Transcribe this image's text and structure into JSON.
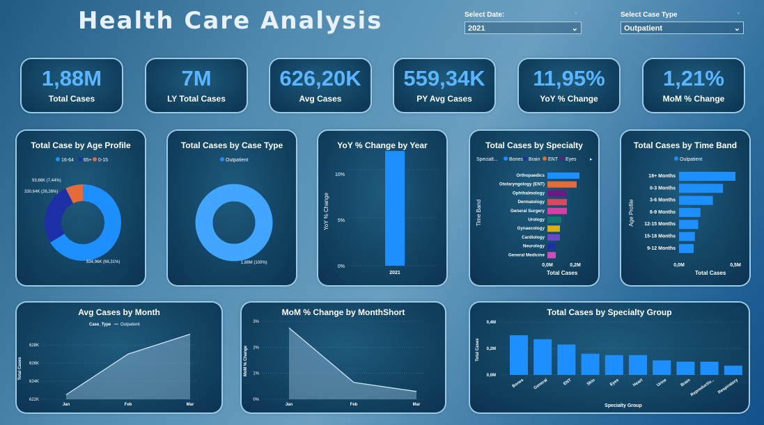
{
  "header": {
    "title": "Health Care Analysis"
  },
  "filters": {
    "date": {
      "label": "Select Date:",
      "value": "2021"
    },
    "case_type": {
      "label": "Select Case Type",
      "value": "Outpatient"
    }
  },
  "kpis": [
    {
      "value": "1,88M",
      "label": "Total Cases"
    },
    {
      "value": "7M",
      "label": "LY Total Cases"
    },
    {
      "value": "626,20K",
      "label": "Avg Cases"
    },
    {
      "value": "559,34K",
      "label": "PY Avg Cases"
    },
    {
      "value": "11,95%",
      "label": "YoY % Change"
    },
    {
      "value": "1,21%",
      "label": "MoM % Change"
    }
  ],
  "colors": {
    "primary": "#1e8fff",
    "age_16_64": "#1e8fff",
    "age_65": "#1c2fa6",
    "age_0_15": "#e46c3a",
    "bones": "#1e8fff",
    "brain": "#1c2fa6",
    "ent": "#e46c3a",
    "eyes": "#6a1b80"
  },
  "chart_data": [
    {
      "id": "age",
      "type": "pie",
      "title": "Total Case by Age Profile",
      "legend_position": "top",
      "categories": [
        "16-64",
        "65+",
        "0-15"
      ],
      "values": [
        834.96,
        330.64,
        93.66
      ],
      "data_labels": [
        "834,96K (66,31%)",
        "330,64K (26,26%)",
        "93,66K (7,44%)"
      ]
    },
    {
      "id": "casetype",
      "type": "pie",
      "title": "Total Cases by Case Type",
      "legend_position": "top",
      "categories": [
        "Outpatient"
      ],
      "values": [
        1.88
      ],
      "data_labels": [
        "1,88M (100%)"
      ]
    },
    {
      "id": "yoy",
      "type": "bar",
      "title": "YoY % Change by Year",
      "categories": [
        "2021"
      ],
      "values": [
        11.95
      ],
      "ylabel": "YoY % Change",
      "ylim": [
        0,
        12
      ],
      "yticks": [
        "0%",
        "5%",
        "10%"
      ]
    },
    {
      "id": "specialty",
      "type": "bar",
      "title": "Total Cases by Specialty",
      "orientation": "horizontal",
      "legend_title": "Specialt...",
      "legend": [
        "Bones",
        "Brain",
        "ENT",
        "Eyes"
      ],
      "categories": [
        "Orthopaedics",
        "Otolaryngology (ENT)",
        "Ophthalmology",
        "Dermatology",
        "General Surgery",
        "Urology",
        "Gynaecology",
        "Cardiology",
        "Neurology",
        "General Medicine"
      ],
      "values": [
        0.23,
        0.21,
        0.14,
        0.14,
        0.14,
        0.1,
        0.09,
        0.09,
        0.06,
        0.06
      ],
      "bar_colors": [
        "#1e8fff",
        "#e46c3a",
        "#6a1b80",
        "#d9485e",
        "#d63fa3",
        "#14756e",
        "#d8b214",
        "#6b47c9",
        "#1c2fa6",
        "#c94fb9"
      ],
      "xlabel": "Total Cases",
      "ylabel": "Time Band",
      "xticks": [
        "0,0M",
        "0,2M"
      ],
      "xlim": [
        0,
        0.24
      ]
    },
    {
      "id": "timeband",
      "type": "bar",
      "title": "Total Cases by Time Band",
      "orientation": "horizontal",
      "legend": [
        "Outpatient"
      ],
      "categories": [
        "18+ Months",
        "0-3 Months",
        "3-6 Months",
        "6-9 Months",
        "12-15 Months",
        "15-18 Months",
        "9-12 Months"
      ],
      "values": [
        0.5,
        0.39,
        0.3,
        0.19,
        0.17,
        0.14,
        0.13
      ],
      "xlabel": "Total Cases",
      "ylabel": "Age Profile",
      "xticks": [
        "0,0M",
        "0,5M"
      ],
      "xlim": [
        0,
        0.52
      ]
    },
    {
      "id": "avgmonth",
      "type": "area",
      "title": "Avg Cases by Month",
      "legend_title": "Case_Type",
      "legend": [
        "Outpatient"
      ],
      "categories": [
        "Jan",
        "Feb",
        "Mar"
      ],
      "values": [
        622.5,
        627.0,
        629.2
      ],
      "ylabel": "Total Cases",
      "yticks": [
        "622K",
        "624K",
        "626K",
        "628K"
      ],
      "ylim": [
        622,
        630
      ]
    },
    {
      "id": "mom",
      "type": "area",
      "title": "MoM % Change by MonthShort",
      "categories": [
        "Jan",
        "Feb",
        "Mar"
      ],
      "values": [
        2.75,
        0.65,
        0.3
      ],
      "ylabel": "MoM % Change",
      "yticks": [
        "0%",
        "1%",
        "2%",
        "3%"
      ],
      "ylim": [
        0,
        3
      ]
    },
    {
      "id": "specgroup",
      "type": "bar",
      "title": "Total Cases by Specialty Group",
      "categories": [
        "Bones",
        "General",
        "ENT",
        "Skin",
        "Eyes",
        "Heart",
        "Urine",
        "Brain",
        "Reproductiv...",
        "Respiratory"
      ],
      "values": [
        0.3,
        0.27,
        0.23,
        0.16,
        0.15,
        0.15,
        0.11,
        0.1,
        0.1,
        0.07
      ],
      "xlabel": "Specialty Group",
      "ylabel": "Total Cases",
      "yticks": [
        "0,0M",
        "0,2M",
        "0,4M"
      ],
      "ylim": [
        0,
        0.4
      ]
    }
  ]
}
